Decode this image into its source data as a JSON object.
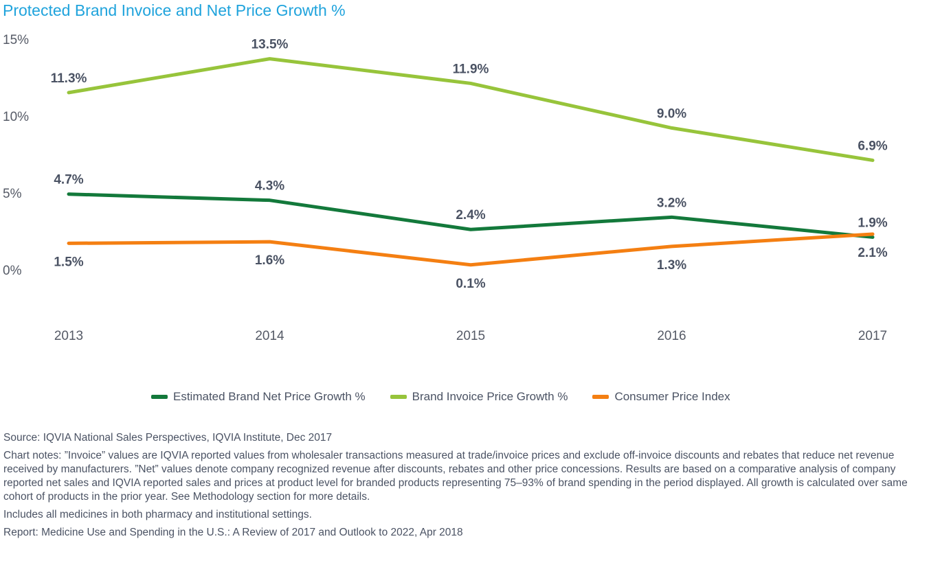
{
  "chart_data": {
    "type": "line",
    "title": "Protected Brand Invoice and Net Price Growth %",
    "categories": [
      "2013",
      "2014",
      "2015",
      "2016",
      "2017"
    ],
    "yticks": [
      "0%",
      "5%",
      "10%",
      "15%"
    ],
    "ylim": [
      0,
      15
    ],
    "grid": false,
    "legend_position": "bottom",
    "series": [
      {
        "name": "Estimated Brand Net Price Growth %",
        "color": "#13793b",
        "values": [
          4.7,
          4.3,
          2.4,
          3.2,
          1.9
        ],
        "labels": [
          "4.7%",
          "4.3%",
          "2.4%",
          "3.2%",
          "1.9%"
        ],
        "label_side": [
          "above",
          "above",
          "above",
          "above",
          "above"
        ]
      },
      {
        "name": "Brand Invoice Price Growth %",
        "color": "#97c43b",
        "values": [
          11.3,
          13.5,
          11.9,
          9.0,
          6.9
        ],
        "labels": [
          "11.3%",
          "13.5%",
          "11.9%",
          "9.0%",
          "6.9%"
        ],
        "label_side": [
          "above",
          "above",
          "above",
          "above",
          "above"
        ]
      },
      {
        "name": "Consumer Price Index",
        "color": "#f47f12",
        "values": [
          1.5,
          1.6,
          0.1,
          1.3,
          2.1
        ],
        "labels": [
          "1.5%",
          "1.6%",
          "0.1%",
          "1.3%",
          "2.1%"
        ],
        "label_side": [
          "below",
          "below",
          "below",
          "below",
          "below"
        ]
      }
    ]
  },
  "notes": {
    "source": "Source: IQVIA National Sales Perspectives, IQVIA Institute, Dec 2017",
    "chart_notes": "Chart notes: ”Invoice” values are IQVIA reported values from wholesaler transactions measured at trade/invoice prices and exclude off-invoice discounts and rebates that reduce net revenue received by manufacturers. ”Net” values denote company recognized revenue after discounts, rebates and other price concessions. Results are based on a comparative analysis of company reported net sales and IQVIA reported sales and prices at product level for branded products representing 75–93% of brand spending in the period displayed. All growth is calculated over same cohort of products in the prior year. See Methodology section for more details.",
    "includes": "Includes all medicines in both pharmacy and institutional settings.",
    "report": "Report: Medicine Use and Spending in the U.S.: A Review of 2017 and Outlook to 2022, Apr 2018"
  }
}
